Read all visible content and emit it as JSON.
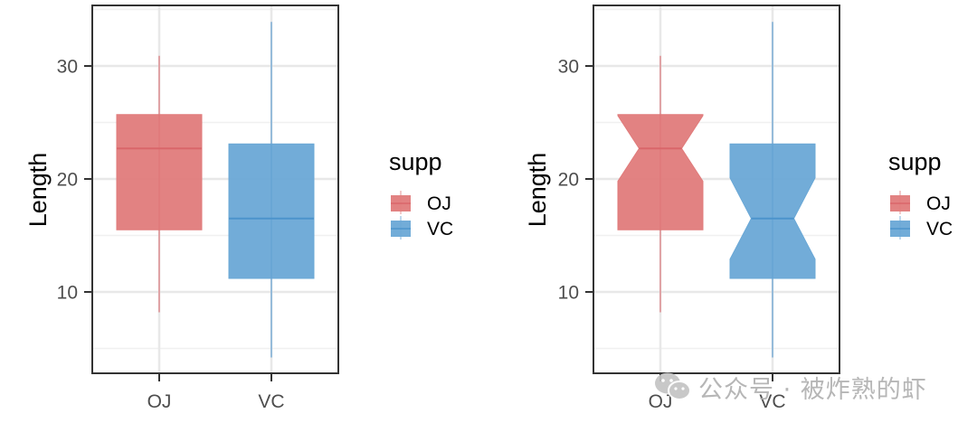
{
  "chart_data": [
    {
      "type": "boxplot",
      "title": "",
      "variant": "standard",
      "xlabel": "",
      "ylabel": "Length",
      "categories": [
        "OJ",
        "VC"
      ],
      "y_ticks": [
        10,
        20,
        30
      ],
      "ylim": [
        2.7,
        35.4
      ],
      "grid": true,
      "legend": {
        "title": "supp",
        "position": "right",
        "entries": [
          "OJ",
          "VC"
        ]
      },
      "series": [
        {
          "name": "OJ",
          "color": "#E07B7B",
          "line_color": "#D9666A",
          "min": 8.2,
          "q1": 15.5,
          "median": 22.7,
          "q3": 25.7,
          "max": 30.9
        },
        {
          "name": "VC",
          "color": "#6AA8D6",
          "line_color": "#4C93CC",
          "min": 4.2,
          "q1": 11.2,
          "median": 16.5,
          "q3": 23.1,
          "max": 33.9
        }
      ]
    },
    {
      "type": "boxplot",
      "title": "",
      "variant": "notched",
      "xlabel": "",
      "ylabel": "Length",
      "categories": [
        "OJ",
        "VC"
      ],
      "y_ticks": [
        10,
        20,
        30
      ],
      "ylim": [
        2.7,
        35.4
      ],
      "grid": true,
      "legend": {
        "title": "supp",
        "position": "right",
        "entries": [
          "OJ",
          "VC"
        ]
      },
      "series": [
        {
          "name": "OJ",
          "color": "#E07B7B",
          "line_color": "#D9666A",
          "min": 8.2,
          "q1": 15.5,
          "median": 22.7,
          "q3": 25.7,
          "max": 30.9,
          "notch_low": 19.8,
          "notch_high": 25.6
        },
        {
          "name": "VC",
          "color": "#6AA8D6",
          "line_color": "#4C93CC",
          "min": 4.2,
          "q1": 11.2,
          "median": 16.5,
          "q3": 23.1,
          "max": 33.9,
          "notch_low": 12.9,
          "notch_high": 20.1
        }
      ]
    }
  ],
  "watermark": {
    "text": "公众号 · 被炸熟的虾",
    "icon": "wechat-icon"
  }
}
